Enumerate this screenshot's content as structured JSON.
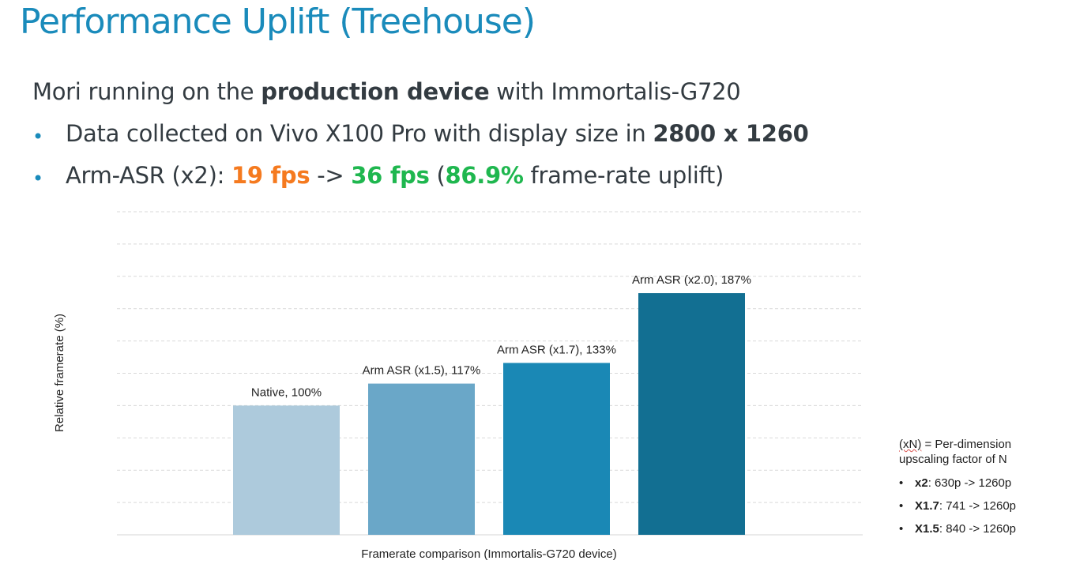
{
  "slide": {
    "title": "Performance Uplift (Treehouse)",
    "intro": {
      "prefix": "Mori running on the ",
      "bold": "production device",
      "suffix": " with Immortalis-G720"
    },
    "bullet1": {
      "prefix": "Data collected on Vivo X100 Pro with display size in ",
      "bold": "2800 x 1260"
    },
    "bullet2": {
      "prefix": "Arm-ASR (x2): ",
      "fps_before": "19 fps",
      "arrow": " -> ",
      "fps_after": "36 fps",
      "paren_open": " (",
      "uplift": "86.9%",
      "suffix": " frame-rate uplift)"
    },
    "colors": {
      "title": "#1a8bbb",
      "orange": "#f57a1f",
      "green": "#1fb74f"
    }
  },
  "notes": {
    "header_xn": "(xN)",
    "header_rest": " = Per-dimension upscaling factor of N",
    "items": [
      {
        "bold": "x2",
        "text": ": 630p -> 1260p"
      },
      {
        "bold": "X1.7",
        "text": ": 741 -> 1260p"
      },
      {
        "bold": "X1.5",
        "text": ": 840 -> 1260p"
      }
    ]
  },
  "chart_data": {
    "type": "bar",
    "title": "",
    "xlabel": "Framerate comparison (Immortalis-G720 device)",
    "ylabel": "Relative framerate (%)",
    "ylim": [
      0,
      250
    ],
    "grid": true,
    "categories": [
      "Native",
      "Arm ASR (x1.5)",
      "Arm ASR (x1.7)",
      "Arm ASR (x2.0)"
    ],
    "values": [
      100,
      117,
      133,
      187
    ],
    "data_labels": [
      "Native, 100%",
      "Arm ASR (x1.5), 117%",
      "Arm ASR (x1.7), 133%",
      "Arm ASR (x2.0), 187%"
    ],
    "colors": [
      "#adcadc",
      "#6aa7c8",
      "#1a88b5",
      "#126f92"
    ]
  }
}
